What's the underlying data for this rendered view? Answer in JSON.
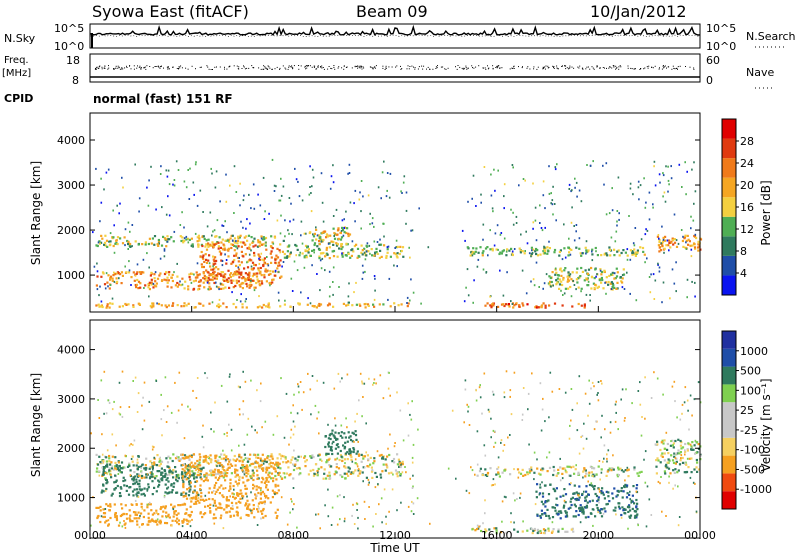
{
  "header": {
    "site": "Syowa East (fitACF)",
    "beam": "Beam 09",
    "date": "10/Jan/2012"
  },
  "noise_panel": {
    "left_label": "N.Sky",
    "left_top_tick": "10^5",
    "left_bottom_tick": "10^0",
    "right_label": "N.Search",
    "right_top_tick": "10^5",
    "right_bottom_tick": "10^0"
  },
  "freq_panel": {
    "left_label_1": "Freq.",
    "left_label_2": "[MHz]",
    "left_top_tick": "18",
    "left_bottom_tick": "8",
    "right_label": "Nave",
    "right_top_tick": "60",
    "right_bottom_tick": "0",
    "cpid_label": "CPID",
    "cpid_text": "normal (fast) 151 RF"
  },
  "colors": {
    "power_scale": [
      "#0a14f0",
      "#1f4ea8",
      "#2f7a5e",
      "#4fae54",
      "#f4d040",
      "#f5a623",
      "#f07a1a",
      "#e03a10",
      "#e00000"
    ],
    "velocity_scale": [
      "#e00000",
      "#f04a10",
      "#f5a020",
      "#f5d060",
      "#c8c8c8",
      "#c8c8c8",
      "#7fd050",
      "#2f7a5e",
      "#1f4ea8",
      "#2030a0"
    ]
  },
  "chart_data": [
    {
      "type": "heatmap",
      "name": "power",
      "xlabel": "",
      "ylabel": "Slant Range [km]",
      "xlim": [
        0,
        24
      ],
      "ylim": [
        180,
        4600
      ],
      "yticks": [
        "1000",
        "2000",
        "3000",
        "4000"
      ],
      "colorbar_label": "Power [dB]",
      "colorbar_ticks": [
        "4",
        "8",
        "12",
        "16",
        "20",
        "24",
        "28"
      ],
      "colorbar_range": [
        0,
        30
      ],
      "bands": [
        {
          "x0": 0.2,
          "x1": 7.6,
          "y0": 1650,
          "y1": 1900,
          "value": 14
        },
        {
          "x0": 0.2,
          "x1": 6.5,
          "y0": 700,
          "y1": 1100,
          "value": 20
        },
        {
          "x0": 4.3,
          "x1": 7.5,
          "y0": 800,
          "y1": 1750,
          "value": 21
        },
        {
          "x0": 7.5,
          "x1": 12.3,
          "y0": 1400,
          "y1": 1700,
          "value": 13
        },
        {
          "x0": 8.6,
          "x1": 10.2,
          "y0": 1700,
          "y1": 2100,
          "value": 16
        },
        {
          "x0": 0.2,
          "x1": 12.5,
          "y0": 300,
          "y1": 400,
          "value": 18
        },
        {
          "x0": 14.8,
          "x1": 21.8,
          "y0": 1450,
          "y1": 1650,
          "value": 12
        },
        {
          "x0": 18.0,
          "x1": 21.0,
          "y0": 700,
          "y1": 1200,
          "value": 14
        },
        {
          "x0": 22.3,
          "x1": 24.0,
          "y0": 1550,
          "y1": 1900,
          "value": 19
        },
        {
          "x0": 15.5,
          "x1": 19.5,
          "y0": 300,
          "y1": 400,
          "value": 23
        }
      ]
    },
    {
      "type": "heatmap",
      "name": "velocity",
      "xlabel": "Time UT",
      "ylabel": "Slant Range [km]",
      "xlim": [
        0,
        24
      ],
      "xticks": [
        "00:00",
        "04:00",
        "08:00",
        "12:00",
        "16:00",
        "20:00",
        "00:00"
      ],
      "ylim": [
        180,
        4600
      ],
      "yticks": [
        "1000",
        "2000",
        "3000",
        "4000"
      ],
      "colorbar_label": "Velocity [m s⁻¹]",
      "colorbar_ticks": [
        "-1000",
        "-500",
        "-100",
        "-25",
        "25",
        "100",
        "500",
        "1000"
      ],
      "bands": [
        {
          "x0": 0.2,
          "x1": 12.3,
          "y0": 1400,
          "y1": 1900,
          "value": 0
        },
        {
          "x0": 0.4,
          "x1": 4.4,
          "y0": 1050,
          "y1": 1700,
          "value": 350
        },
        {
          "x0": 3.6,
          "x1": 7.4,
          "y0": 600,
          "y1": 1900,
          "value": -300
        },
        {
          "x0": 0.2,
          "x1": 4.0,
          "y0": 450,
          "y1": 900,
          "value": -250
        },
        {
          "x0": 9.2,
          "x1": 10.5,
          "y0": 1900,
          "y1": 2400,
          "value": 300
        },
        {
          "x0": 15.2,
          "x1": 21.8,
          "y0": 1450,
          "y1": 1650,
          "value": 0
        },
        {
          "x0": 17.5,
          "x1": 21.5,
          "y0": 600,
          "y1": 1300,
          "value": 450
        },
        {
          "x0": 22.2,
          "x1": 24.0,
          "y0": 1500,
          "y1": 2200,
          "value": 40
        },
        {
          "x0": 15.0,
          "x1": 19.0,
          "y0": 300,
          "y1": 400,
          "value": 20
        }
      ]
    }
  ]
}
